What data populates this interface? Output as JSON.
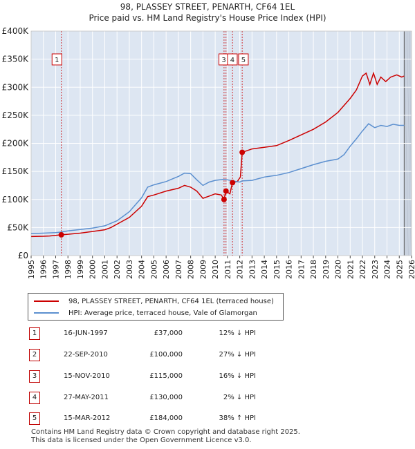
{
  "title_line1": "98, PLASSEY STREET, PENARTH, CF64 1EL",
  "title_line2": "Price paid vs. HM Land Registry's House Price Index (HPI)",
  "colors": {
    "property": "#cc0000",
    "hpi": "#5b8fcf",
    "shade": "#dde6f2",
    "marker": "#cc0000",
    "grid": "#ffffff"
  },
  "chart_data": {
    "type": "line",
    "xlim": [
      1995,
      2026
    ],
    "ylim": [
      0,
      400000
    ],
    "ytick_values": [
      0,
      50000,
      100000,
      150000,
      200000,
      250000,
      300000,
      350000,
      400000
    ],
    "ytick_labels": [
      "£0",
      "£50K",
      "£100K",
      "£150K",
      "£200K",
      "£250K",
      "£300K",
      "£350K",
      "£400K"
    ],
    "xtick_labels": [
      "1995",
      "1996",
      "1997",
      "1998",
      "1999",
      "2000",
      "2001",
      "2002",
      "2003",
      "2004",
      "2005",
      "2006",
      "2007",
      "2008",
      "2009",
      "2010",
      "2011",
      "2012",
      "2013",
      "2014",
      "2015",
      "2016",
      "2017",
      "2018",
      "2019",
      "2020",
      "2021",
      "2022",
      "2023",
      "2024",
      "2025",
      "2026"
    ],
    "future_shade_from": 2025.4,
    "series": [
      {
        "name": "98, PLASSEY STREET, PENARTH, CF64 1EL (terraced house)",
        "color_key": "property",
        "points": [
          [
            1995.0,
            34000
          ],
          [
            1996.0,
            34500
          ],
          [
            1996.5,
            35000
          ],
          [
            1997.0,
            36000
          ],
          [
            1997.46,
            37000
          ],
          [
            1998.0,
            38000
          ],
          [
            1999.0,
            40000
          ],
          [
            2000.0,
            43000
          ],
          [
            2001.0,
            46000
          ],
          [
            2001.5,
            50000
          ],
          [
            2002.0,
            56000
          ],
          [
            2003.0,
            68000
          ],
          [
            2004.0,
            88000
          ],
          [
            2004.5,
            105000
          ],
          [
            2005.0,
            108000
          ],
          [
            2006.0,
            115000
          ],
          [
            2007.0,
            120000
          ],
          [
            2007.5,
            125000
          ],
          [
            2008.0,
            122000
          ],
          [
            2008.5,
            115000
          ],
          [
            2009.0,
            102000
          ],
          [
            2009.5,
            106000
          ],
          [
            2010.0,
            110000
          ],
          [
            2010.5,
            108000
          ],
          [
            2010.72,
            100000
          ],
          [
            2010.88,
            115000
          ],
          [
            2011.2,
            110000
          ],
          [
            2011.41,
            130000
          ],
          [
            2011.8,
            132000
          ],
          [
            2012.05,
            140000
          ],
          [
            2012.2,
            184000
          ],
          [
            2013.0,
            190000
          ],
          [
            2014.0,
            193000
          ],
          [
            2015.0,
            196000
          ],
          [
            2016.0,
            205000
          ],
          [
            2017.0,
            215000
          ],
          [
            2018.0,
            225000
          ],
          [
            2019.0,
            238000
          ],
          [
            2020.0,
            255000
          ],
          [
            2021.0,
            280000
          ],
          [
            2021.5,
            295000
          ],
          [
            2022.0,
            320000
          ],
          [
            2022.3,
            325000
          ],
          [
            2022.6,
            305000
          ],
          [
            2022.9,
            325000
          ],
          [
            2023.2,
            305000
          ],
          [
            2023.5,
            318000
          ],
          [
            2023.9,
            310000
          ],
          [
            2024.3,
            318000
          ],
          [
            2024.8,
            322000
          ],
          [
            2025.2,
            318000
          ],
          [
            2025.4,
            320000
          ]
        ]
      },
      {
        "name": "HPI: Average price, terraced house, Vale of Glamorgan",
        "color_key": "hpi",
        "points": [
          [
            1995.0,
            39000
          ],
          [
            1996.0,
            40000
          ],
          [
            1997.0,
            41000
          ],
          [
            1997.46,
            42000
          ],
          [
            1998.0,
            44000
          ],
          [
            1999.0,
            46500
          ],
          [
            2000.0,
            49000
          ],
          [
            2001.0,
            53000
          ],
          [
            2002.0,
            62000
          ],
          [
            2003.0,
            78000
          ],
          [
            2004.0,
            103000
          ],
          [
            2004.5,
            122000
          ],
          [
            2005.0,
            126000
          ],
          [
            2006.0,
            132000
          ],
          [
            2007.0,
            141000
          ],
          [
            2007.5,
            147000
          ],
          [
            2008.0,
            146000
          ],
          [
            2008.5,
            135000
          ],
          [
            2009.0,
            125000
          ],
          [
            2009.5,
            131000
          ],
          [
            2010.0,
            134000
          ],
          [
            2010.72,
            136000
          ],
          [
            2011.0,
            135000
          ],
          [
            2011.41,
            133000
          ],
          [
            2012.0,
            131000
          ],
          [
            2012.2,
            133000
          ],
          [
            2013.0,
            134000
          ],
          [
            2014.0,
            140000
          ],
          [
            2015.0,
            143000
          ],
          [
            2016.0,
            148000
          ],
          [
            2017.0,
            155000
          ],
          [
            2018.0,
            162000
          ],
          [
            2019.0,
            168000
          ],
          [
            2020.0,
            172000
          ],
          [
            2020.5,
            180000
          ],
          [
            2021.0,
            195000
          ],
          [
            2021.5,
            208000
          ],
          [
            2022.0,
            222000
          ],
          [
            2022.5,
            235000
          ],
          [
            2023.0,
            228000
          ],
          [
            2023.5,
            232000
          ],
          [
            2024.0,
            230000
          ],
          [
            2024.5,
            234000
          ],
          [
            2025.0,
            232000
          ],
          [
            2025.4,
            232000
          ]
        ]
      }
    ],
    "sales": [
      {
        "label": "1",
        "date_num": 1997.46,
        "price": 37000
      },
      {
        "label": "2",
        "date_num": 2010.72,
        "price": 100000
      },
      {
        "label": "3",
        "date_num": 2010.88,
        "price": 115000
      },
      {
        "label": "4",
        "date_num": 2011.41,
        "price": 130000
      },
      {
        "label": "5",
        "date_num": 2012.2,
        "price": 184000
      }
    ],
    "chart_labels": [
      "1",
      "3",
      "4",
      "5"
    ]
  },
  "legend": {
    "property": "98, PLASSEY STREET, PENARTH, CF64 1EL (terraced house)",
    "hpi": "HPI: Average price, terraced house, Vale of Glamorgan"
  },
  "transactions": [
    {
      "num": "1",
      "date": "16-JUN-1997",
      "price": "£37,000",
      "hpi": "12% ↓ HPI"
    },
    {
      "num": "2",
      "date": "22-SEP-2010",
      "price": "£100,000",
      "hpi": "27% ↓ HPI"
    },
    {
      "num": "3",
      "date": "15-NOV-2010",
      "price": "£115,000",
      "hpi": "16% ↓ HPI"
    },
    {
      "num": "4",
      "date": "27-MAY-2011",
      "price": "£130,000",
      "hpi": "2% ↓ HPI"
    },
    {
      "num": "5",
      "date": "15-MAR-2012",
      "price": "£184,000",
      "hpi": "38% ↑ HPI"
    }
  ],
  "footer": {
    "line1": "Contains HM Land Registry data © Crown copyright and database right 2025.",
    "line2": "This data is licensed under the Open Government Licence v3.0."
  }
}
